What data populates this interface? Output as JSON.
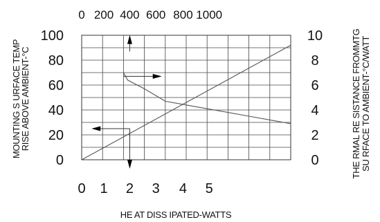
{
  "chart_data": {
    "type": "line",
    "xlabel": "HE AT DISS IPATED-WATTS",
    "x_top_label": "",
    "ylabel_left": [
      "MOUNTING S URFACE TEMP",
      "RISE ABOVE AMBIENT-°C"
    ],
    "ylabel_right": [
      "THE RMAL RE SISTANCE FROMMTG",
      "SU RFACE TO AMBIENT-°C/WATT"
    ],
    "x_bottom_ticks": [
      "0",
      "1",
      "2",
      "3",
      "4",
      "5"
    ],
    "x_bottom_tick_values": [
      0,
      1.06,
      2.3,
      3.55,
      4.85,
      6.1
    ],
    "x_top_ticks": [
      "0",
      "200",
      "400",
      "600",
      "800",
      "1000"
    ],
    "x_top_tick_values": [
      0,
      1.06,
      2.3,
      3.55,
      4.85,
      6.1
    ],
    "y_left_ticks": [
      "100",
      "80",
      "60",
      "40",
      "20",
      "0"
    ],
    "y_left_tick_values": [
      10,
      8,
      6,
      4,
      2,
      0
    ],
    "y_right_ticks": [
      "10",
      "8",
      "6",
      "4",
      "2",
      "0"
    ],
    "y_right_tick_values": [
      10,
      8,
      6,
      4,
      2,
      0
    ],
    "xlim": [
      0,
      10
    ],
    "ylim": [
      0,
      10
    ],
    "grid": true,
    "series": [
      {
        "axis": "left",
        "points": [
          [
            0,
            0
          ],
          [
            10,
            9.2
          ]
        ]
      },
      {
        "axis": "right",
        "points": [
          [
            2,
            7
          ],
          [
            2.2,
            6.4
          ],
          [
            3,
            5.7
          ],
          [
            4,
            4.7
          ],
          [
            5,
            4.4
          ],
          [
            6,
            4.1
          ],
          [
            7,
            3.8
          ],
          [
            8,
            3.5
          ],
          [
            9,
            3.2
          ],
          [
            10,
            2.9
          ]
        ]
      }
    ],
    "guide_arrows": [
      {
        "from": [
          2.3,
          8.7
        ],
        "to": [
          2.3,
          9.3
        ],
        "direction": "up"
      },
      {
        "from": [
          2.0,
          6.7
        ],
        "to": [
          3.4,
          6.7
        ],
        "direction": "right"
      },
      {
        "from": [
          2.3,
          2.5
        ],
        "to": [
          0.9,
          2.5
        ],
        "direction": "left"
      },
      {
        "from": [
          2.3,
          2.5
        ],
        "to": [
          2.3,
          0
        ],
        "direction": "down"
      }
    ]
  }
}
